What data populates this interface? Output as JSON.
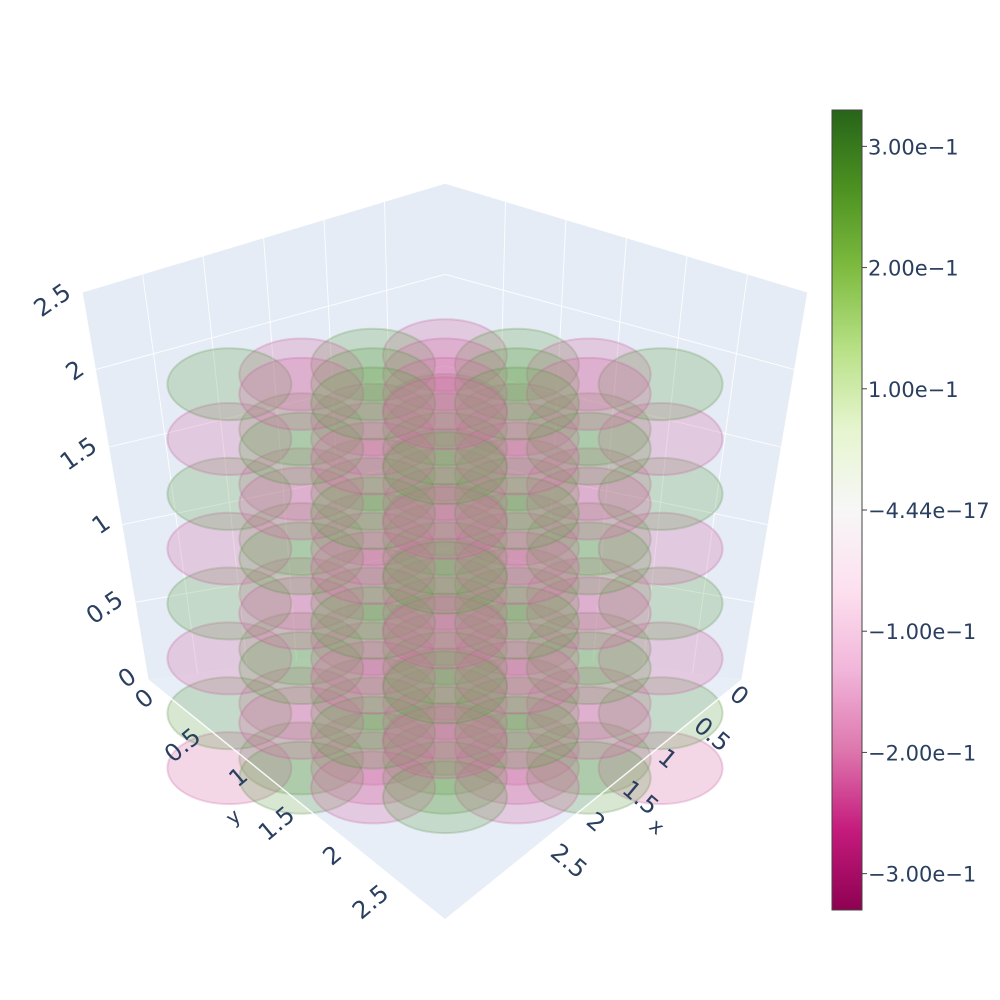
{
  "chart_data": {
    "type": "volume",
    "title": "",
    "axes": {
      "x": {
        "label": "x",
        "ticks": [
          "0",
          "0.5",
          "1",
          "1.5",
          "2",
          "2.5"
        ],
        "range": [
          0,
          3
        ]
      },
      "y": {
        "label": "y",
        "ticks": [
          "0",
          "0.5",
          "1",
          "1.5",
          "2",
          "2.5"
        ],
        "range": [
          0,
          3
        ]
      },
      "z": {
        "label": "",
        "ticks": [
          "0",
          "0.5",
          "1",
          "1.5",
          "2",
          "2.5"
        ],
        "range": [
          0,
          2.5
        ]
      }
    },
    "colorbar": {
      "colorscale": "PiYG",
      "range": [
        -0.33,
        0.33
      ],
      "ticks": [
        {
          "value": 0.3,
          "label": "3.00e−1"
        },
        {
          "value": 0.2,
          "label": "2.00e−1"
        },
        {
          "value": 0.1,
          "label": "1.00e−1"
        },
        {
          "value": 0.0,
          "label": "−4.44e−17"
        },
        {
          "value": -0.1,
          "label": "−1.00e−1"
        },
        {
          "value": -0.2,
          "label": "−2.00e−1"
        },
        {
          "value": -0.3,
          "label": "−3.00e−1"
        }
      ],
      "colors": [
        "#8e0152",
        "#c51b7d",
        "#de77ae",
        "#f1b6da",
        "#fde0ef",
        "#f7f7f7",
        "#e6f5d0",
        "#b8e186",
        "#7fbc41",
        "#4d9221",
        "#276419"
      ]
    },
    "scene": {
      "background": "#e5ecf6",
      "grid": true
    }
  }
}
